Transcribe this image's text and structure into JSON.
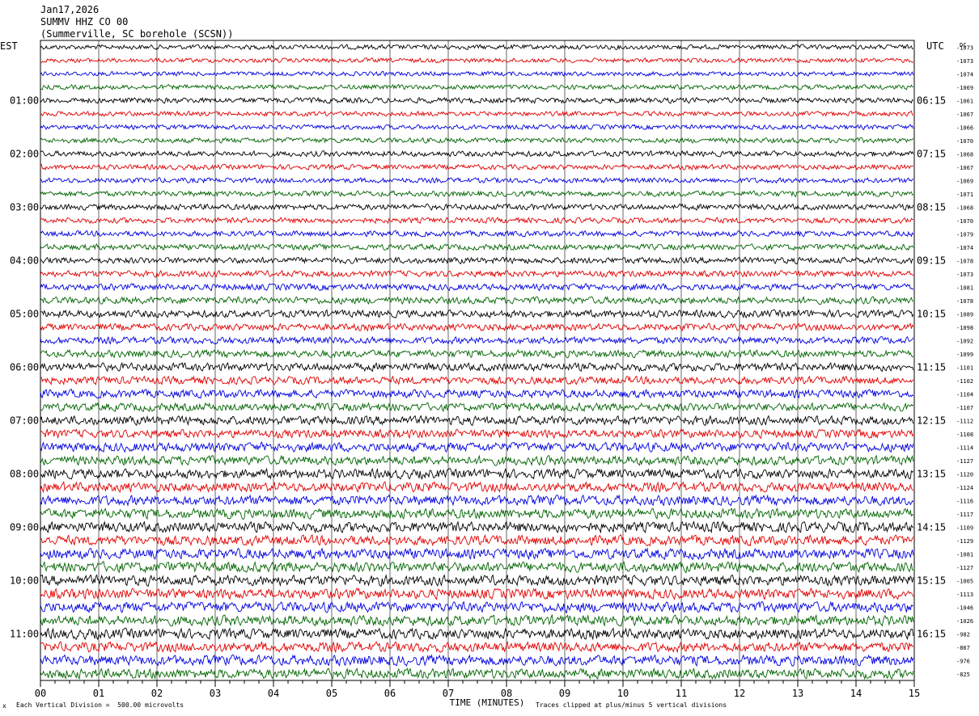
{
  "header": {
    "date": "Jan17,2026",
    "station": "SUMMV HHZ CO 00",
    "location": "(Summerville, SC borehole (SCSN))"
  },
  "chart_data": {
    "type": "line",
    "left_tz": "EST",
    "right_tz": "UTC",
    "offset_header": "DC",
    "xlabel": "TIME (MINUTES)",
    "x_tick_labels": [
      "00",
      "01",
      "02",
      "03",
      "04",
      "05",
      "06",
      "07",
      "08",
      "09",
      "10",
      "11",
      "12",
      "13",
      "14",
      "15"
    ],
    "xlim": [
      0,
      15
    ],
    "grid_x": true,
    "rows_per_hour": 4,
    "left_hour_labels": [
      "01:00",
      "02:00",
      "03:00",
      "04:00",
      "05:00",
      "06:00",
      "07:00",
      "08:00",
      "09:00",
      "10:00",
      "11:00"
    ],
    "right_hour_labels": [
      "06:15",
      "07:15",
      "08:15",
      "09:15",
      "10:15",
      "11:15",
      "12:15",
      "13:15",
      "14:15",
      "15:15",
      "16:15"
    ],
    "trace_colors": [
      "#000000",
      "#e00000",
      "#0000e0",
      "#006400"
    ],
    "row_offsets": [
      "-1073",
      "-1073",
      "-1074",
      "-1069",
      "-1061",
      "-1067",
      "-1066",
      "-1070",
      "-1068",
      "-1067",
      "-1069",
      "-1071",
      "-1068",
      "-1070",
      "-1079",
      "-1074",
      "-1078",
      "-1073",
      "-1081",
      "-1078",
      "-1089",
      "-1098",
      "-1092",
      "-1099",
      "-1101",
      "-1102",
      "-1104",
      "-1107",
      "-1112",
      "-1108",
      "-1114",
      "-1127",
      "-1120",
      "-1124",
      "-1116",
      "-1117",
      "-1109",
      "-1129",
      "-1081",
      "-1127",
      "-1005",
      "-1113",
      "-1046",
      "-1026",
      "-982",
      "-867",
      "-976",
      "-825"
    ],
    "row_amplitude_divisions": [
      1.3,
      1.2,
      1.2,
      1.3,
      1.5,
      1.3,
      1.3,
      1.4,
      1.5,
      1.4,
      1.4,
      1.5,
      1.6,
      1.5,
      1.5,
      1.6,
      1.7,
      1.7,
      1.8,
      1.9,
      2.0,
      1.9,
      1.9,
      2.0,
      2.2,
      2.1,
      2.2,
      2.2,
      2.4,
      2.3,
      2.5,
      2.5,
      2.6,
      2.6,
      2.7,
      2.7,
      2.8,
      2.7,
      2.8,
      2.8,
      2.8,
      2.8,
      2.8,
      2.8,
      2.8,
      2.7,
      2.8,
      2.7
    ],
    "vertical_division_uV": 500.0,
    "footer_left": "Each Vertical Division =  500.00 microvolts",
    "footer_right": "Traces clipped at plus/minus 5 vertical divisions",
    "footer_mark": "x"
  }
}
